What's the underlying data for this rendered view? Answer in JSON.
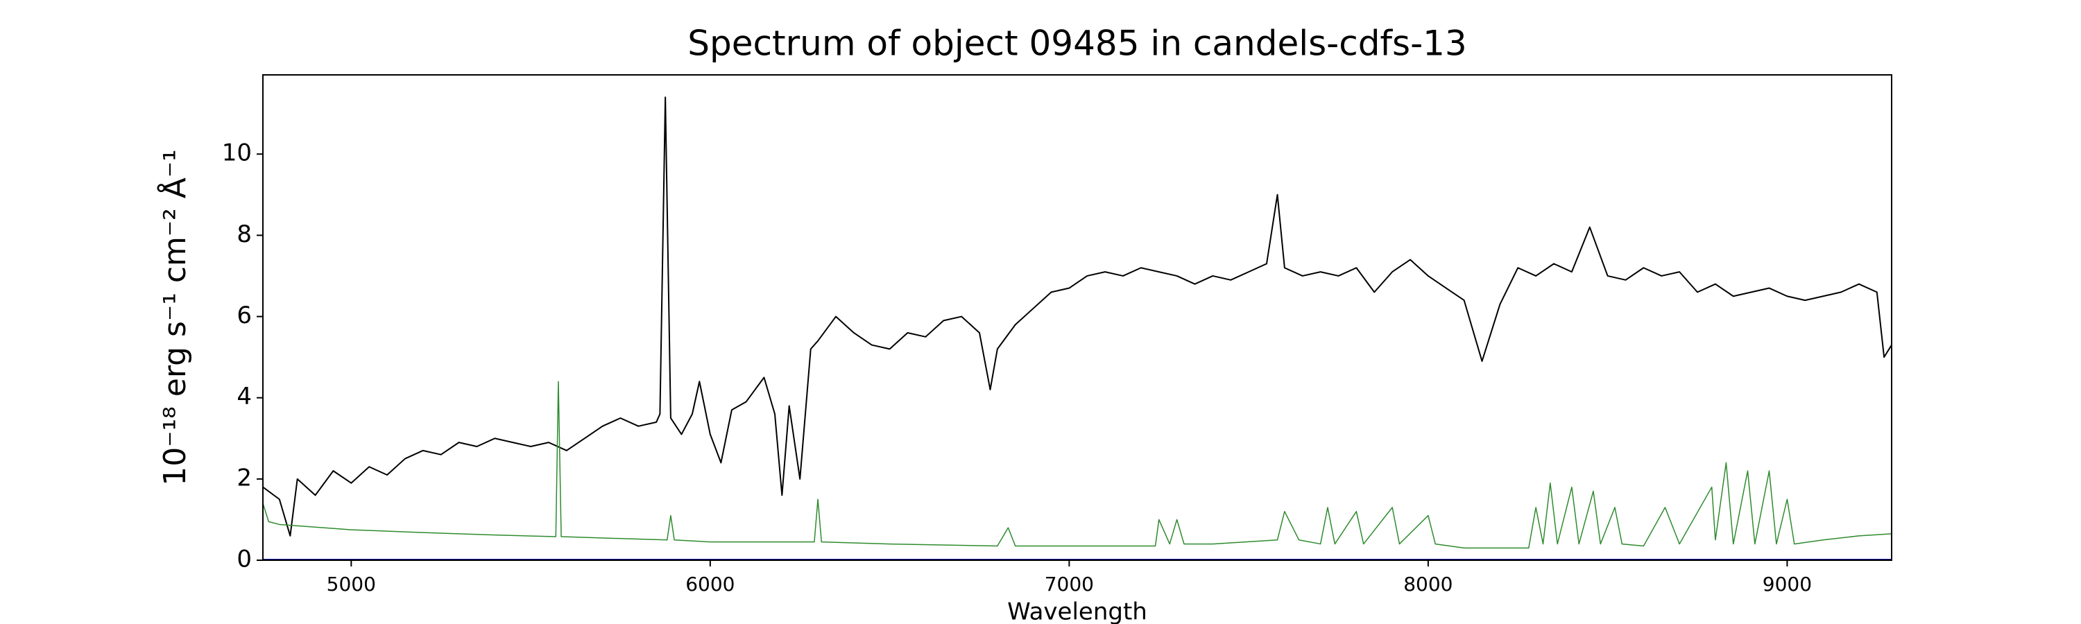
{
  "chart_data": {
    "type": "line",
    "title": "Spectrum of object 09485 in candels-cdfs-13",
    "xlabel": "Wavelength",
    "ylabel": "10⁻¹⁸ erg s⁻¹ cm⁻² Å⁻¹",
    "xlim": [
      4754,
      9291
    ],
    "ylim": [
      0,
      11.95
    ],
    "xticks": [
      5000,
      6000,
      7000,
      8000,
      9000
    ],
    "yticks": [
      0,
      2,
      4,
      6,
      8,
      10
    ],
    "grid": false,
    "series": [
      {
        "color": "#000000",
        "width": 2,
        "x": [
          4754,
          4800,
          4830,
          4850,
          4900,
          4950,
          5000,
          5050,
          5100,
          5150,
          5200,
          5250,
          5300,
          5350,
          5400,
          5450,
          5500,
          5550,
          5600,
          5650,
          5700,
          5750,
          5800,
          5850,
          5860,
          5875,
          5890,
          5920,
          5950,
          5970,
          6000,
          6030,
          6060,
          6100,
          6150,
          6180,
          6200,
          6220,
          6250,
          6280,
          6300,
          6350,
          6400,
          6450,
          6500,
          6550,
          6600,
          6650,
          6700,
          6750,
          6780,
          6800,
          6850,
          6900,
          6950,
          7000,
          7050,
          7100,
          7150,
          7200,
          7250,
          7300,
          7350,
          7400,
          7450,
          7500,
          7550,
          7580,
          7600,
          7650,
          7700,
          7750,
          7800,
          7850,
          7900,
          7950,
          8000,
          8050,
          8100,
          8150,
          8200,
          8250,
          8300,
          8350,
          8400,
          8450,
          8500,
          8550,
          8600,
          8650,
          8700,
          8750,
          8800,
          8850,
          8900,
          8950,
          9000,
          9050,
          9100,
          9150,
          9200,
          9250,
          9270,
          9291
        ],
        "values": [
          1.8,
          1.5,
          0.6,
          2.0,
          1.6,
          2.2,
          1.9,
          2.3,
          2.1,
          2.5,
          2.7,
          2.6,
          2.9,
          2.8,
          3.0,
          2.9,
          2.8,
          2.9,
          2.7,
          3.0,
          3.3,
          3.5,
          3.3,
          3.4,
          3.6,
          11.4,
          3.5,
          3.1,
          3.6,
          4.4,
          3.1,
          2.4,
          3.7,
          3.9,
          4.5,
          3.6,
          1.6,
          3.8,
          2.0,
          5.2,
          5.4,
          6.0,
          5.6,
          5.3,
          5.2,
          5.6,
          5.5,
          5.9,
          6.0,
          5.6,
          4.2,
          5.2,
          5.8,
          6.2,
          6.6,
          6.7,
          7.0,
          7.1,
          7.0,
          7.2,
          7.1,
          7.0,
          6.8,
          7.0,
          6.9,
          7.1,
          7.3,
          9.0,
          7.2,
          7.0,
          7.1,
          7.0,
          7.2,
          6.6,
          7.1,
          7.4,
          7.0,
          6.7,
          6.4,
          4.9,
          6.3,
          7.2,
          7.0,
          7.3,
          7.1,
          8.2,
          7.0,
          6.9,
          7.2,
          7.0,
          7.1,
          6.6,
          6.8,
          6.5,
          6.6,
          6.7,
          6.5,
          6.4,
          6.5,
          6.6,
          6.8,
          6.6,
          5.0,
          5.3
        ]
      },
      {
        "color": "#2e8b2e",
        "width": 1.5,
        "x": [
          4754,
          4770,
          4800,
          5000,
          5200,
          5400,
          5570,
          5577,
          5585,
          5800,
          5880,
          5890,
          5900,
          6000,
          6290,
          6300,
          6310,
          6500,
          6800,
          6830,
          6850,
          7000,
          7240,
          7250,
          7280,
          7300,
          7320,
          7400,
          7580,
          7600,
          7640,
          7700,
          7720,
          7740,
          7800,
          7820,
          7900,
          7920,
          8000,
          8020,
          8100,
          8280,
          8300,
          8320,
          8340,
          8360,
          8400,
          8420,
          8460,
          8480,
          8520,
          8540,
          8600,
          8660,
          8700,
          8790,
          8800,
          8830,
          8850,
          8890,
          8910,
          8950,
          8970,
          9000,
          9020,
          9100,
          9200,
          9291
        ],
        "values": [
          1.4,
          0.95,
          0.88,
          0.75,
          0.68,
          0.62,
          0.58,
          4.4,
          0.58,
          0.52,
          0.5,
          1.1,
          0.5,
          0.45,
          0.45,
          1.5,
          0.45,
          0.4,
          0.35,
          0.8,
          0.35,
          0.35,
          0.35,
          1.0,
          0.4,
          1.0,
          0.4,
          0.4,
          0.5,
          1.2,
          0.5,
          0.4,
          1.3,
          0.4,
          1.2,
          0.4,
          1.3,
          0.4,
          1.1,
          0.4,
          0.3,
          0.3,
          1.3,
          0.4,
          1.9,
          0.4,
          1.8,
          0.4,
          1.7,
          0.4,
          1.3,
          0.4,
          0.35,
          1.3,
          0.4,
          1.8,
          0.5,
          2.4,
          0.4,
          2.2,
          0.4,
          2.2,
          0.4,
          1.5,
          0.4,
          0.5,
          0.6,
          0.65
        ]
      },
      {
        "color": "#1a1aa0",
        "width": 4,
        "x": [
          4754,
          9291
        ],
        "values": [
          0,
          0
        ]
      }
    ]
  }
}
